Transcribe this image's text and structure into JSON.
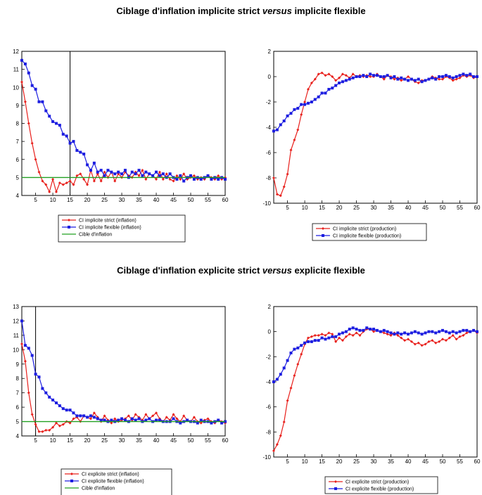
{
  "sections": [
    {
      "title_pre": "Ciblage d'inflation implicite strict ",
      "title_em": "versus",
      "title_post": " implicite flexible"
    },
    {
      "title_pre": "Ciblage d'inflation explicite strict ",
      "title_em": "versus",
      "title_post": " explicite flexible"
    }
  ],
  "colors": {
    "red": "#e8201c",
    "blue": "#1d1ee0",
    "green": "#22a022"
  },
  "chart_data": [
    {
      "type": "line",
      "title": "",
      "xlabel": "",
      "ylabel": "",
      "xlim": [
        1,
        60
      ],
      "ylim": [
        4,
        12
      ],
      "xticks": [
        5,
        10,
        15,
        20,
        25,
        30,
        35,
        40,
        45,
        50,
        55,
        60
      ],
      "yticks": [
        4,
        5,
        6,
        7,
        8,
        9,
        10,
        11,
        12
      ],
      "vline": 15,
      "legend_position": "below",
      "series": [
        {
          "name": "CI implicite strict (inflation)",
          "color": "red",
          "marker": "diamond",
          "values": [
            10.3,
            9.2,
            8.0,
            6.9,
            6.0,
            5.3,
            4.8,
            4.6,
            4.2,
            4.9,
            4.2,
            4.7,
            4.6,
            4.7,
            4.8,
            4.6,
            5.1,
            5.2,
            4.9,
            4.6,
            5.4,
            4.8,
            5.2,
            4.8,
            5.3,
            5.0,
            5.3,
            4.8,
            5.2,
            5.0,
            5.3,
            5.1,
            5.0,
            5.3,
            5.1,
            5.4,
            4.9,
            5.2,
            5.1,
            4.9,
            5.3,
            4.9,
            5.2,
            4.9,
            4.8,
            5.1,
            4.9,
            5.2,
            4.9,
            5.0,
            5.1,
            4.9,
            5.0,
            4.9,
            5.1,
            5.0,
            4.9,
            5.1,
            4.9,
            5.0
          ]
        },
        {
          "name": "CI implicite flexible (inflation)",
          "color": "blue",
          "marker": "square",
          "values": [
            11.5,
            11.3,
            10.8,
            10.1,
            9.9,
            9.2,
            9.2,
            8.7,
            8.4,
            8.1,
            8.0,
            7.9,
            7.4,
            7.3,
            6.9,
            7.0,
            6.5,
            6.4,
            6.3,
            5.7,
            5.4,
            5.8,
            5.3,
            5.4,
            5.1,
            5.4,
            5.3,
            5.2,
            5.3,
            5.2,
            5.4,
            5.0,
            5.3,
            5.2,
            5.4,
            5.1,
            5.3,
            5.2,
            5.1,
            5.3,
            5.1,
            5.2,
            5.0,
            5.2,
            5.0,
            4.9,
            5.1,
            4.8,
            5.0,
            5.1,
            4.9,
            5.0,
            4.9,
            5.0,
            5.1,
            4.9,
            5.0,
            4.9,
            5.0,
            4.9
          ]
        },
        {
          "name": "Cible d'inflation",
          "color": "green",
          "marker": "none",
          "values": [
            5,
            5
          ]
        }
      ]
    },
    {
      "type": "line",
      "title": "",
      "xlabel": "",
      "ylabel": "",
      "xlim": [
        1,
        60
      ],
      "ylim": [
        -10,
        2
      ],
      "xticks": [
        5,
        10,
        15,
        20,
        25,
        30,
        35,
        40,
        45,
        50,
        55,
        60
      ],
      "yticks": [
        -10,
        -8,
        -6,
        -4,
        -2,
        0,
        2
      ],
      "legend_position": "below",
      "series": [
        {
          "name": "CI implicite strict (production)",
          "color": "red",
          "marker": "diamond",
          "values": [
            -8.0,
            -9.3,
            -9.4,
            -8.7,
            -7.7,
            -5.8,
            -5.0,
            -4.2,
            -3.0,
            -2.0,
            -1.0,
            -0.5,
            -0.2,
            0.2,
            0.3,
            0.1,
            0.2,
            0.0,
            -0.3,
            -0.1,
            0.2,
            0.1,
            -0.1,
            0.2,
            0.0,
            0.1,
            0.0,
            0.1,
            0.0,
            0.0,
            0.2,
            0.0,
            -0.2,
            0.1,
            0.0,
            -0.2,
            -0.1,
            -0.3,
            -0.2,
            0.0,
            -0.2,
            -0.4,
            -0.5,
            -0.3,
            -0.3,
            -0.2,
            0.0,
            -0.1,
            -0.2,
            -0.2,
            0.0,
            -0.1,
            -0.3,
            -0.2,
            -0.1,
            0.1,
            0.0,
            0.1,
            -0.1,
            0.0
          ]
        },
        {
          "name": "CI implicite flexible (production)",
          "color": "blue",
          "marker": "square",
          "values": [
            -4.3,
            -4.2,
            -3.8,
            -3.5,
            -3.1,
            -2.9,
            -2.6,
            -2.5,
            -2.2,
            -2.2,
            -2.1,
            -2.0,
            -1.8,
            -1.6,
            -1.3,
            -1.3,
            -1.0,
            -0.9,
            -0.7,
            -0.5,
            -0.4,
            -0.3,
            -0.2,
            -0.1,
            0.0,
            0.0,
            0.1,
            0.0,
            0.2,
            0.1,
            0.1,
            0.0,
            0.0,
            0.1,
            -0.1,
            0.0,
            -0.2,
            -0.1,
            -0.2,
            -0.3,
            -0.2,
            -0.3,
            -0.2,
            -0.4,
            -0.3,
            -0.2,
            -0.1,
            -0.2,
            0.0,
            0.0,
            0.1,
            0.0,
            -0.1,
            0.0,
            0.1,
            0.2,
            0.1,
            0.2,
            0.0,
            0.0
          ]
        }
      ]
    },
    {
      "type": "line",
      "title": "",
      "xlabel": "",
      "ylabel": "",
      "xlim": [
        1,
        60
      ],
      "ylim": [
        4,
        13
      ],
      "xticks": [
        5,
        10,
        15,
        20,
        25,
        30,
        35,
        40,
        45,
        50,
        55,
        60
      ],
      "yticks": [
        4,
        5,
        6,
        7,
        8,
        9,
        10,
        11,
        12,
        13
      ],
      "vline": 5,
      "legend_position": "below",
      "series": [
        {
          "name": "CI explicite strict (inflation)",
          "color": "red",
          "marker": "diamond",
          "values": [
            10.4,
            9.2,
            7.0,
            5.5,
            4.8,
            4.3,
            4.3,
            4.4,
            4.4,
            4.6,
            4.9,
            4.7,
            4.8,
            5.0,
            4.9,
            5.2,
            5.3,
            5.0,
            5.4,
            5.3,
            5.2,
            5.6,
            5.3,
            5.0,
            5.4,
            5.1,
            4.9,
            5.2,
            5.0,
            5.1,
            5.2,
            5.4,
            5.1,
            5.5,
            5.3,
            5.1,
            5.5,
            5.2,
            5.4,
            5.6,
            5.2,
            5.0,
            5.3,
            5.1,
            5.5,
            5.2,
            5.0,
            5.4,
            5.1,
            5.0,
            5.3,
            5.0,
            4.9,
            5.1,
            5.2,
            5.0,
            4.9,
            5.1,
            5.0,
            4.9
          ]
        },
        {
          "name": "CI explicite flexible (inflation)",
          "color": "blue",
          "marker": "square",
          "values": [
            12.0,
            10.3,
            10.1,
            9.6,
            8.3,
            8.1,
            7.3,
            7.0,
            6.7,
            6.5,
            6.3,
            6.1,
            5.9,
            5.8,
            5.8,
            5.6,
            5.4,
            5.4,
            5.4,
            5.3,
            5.4,
            5.3,
            5.2,
            5.1,
            5.1,
            5.0,
            5.1,
            5.0,
            5.1,
            5.2,
            5.1,
            5.0,
            5.2,
            5.1,
            5.2,
            5.0,
            5.1,
            5.2,
            5.0,
            5.1,
            5.1,
            5.0,
            5.0,
            5.0,
            5.2,
            5.0,
            4.9,
            5.0,
            5.1,
            5.0,
            5.0,
            4.9,
            5.1,
            5.0,
            5.0,
            4.9,
            5.0,
            5.1,
            4.9,
            5.0
          ]
        },
        {
          "name": "Cible d'inflation",
          "color": "green",
          "marker": "none",
          "values": [
            5,
            5
          ]
        }
      ]
    },
    {
      "type": "line",
      "title": "",
      "xlabel": "",
      "ylabel": "",
      "xlim": [
        1,
        60
      ],
      "ylim": [
        -10,
        2
      ],
      "xticks": [
        5,
        10,
        15,
        20,
        25,
        30,
        35,
        40,
        45,
        50,
        55,
        60
      ],
      "yticks": [
        -10,
        -8,
        -6,
        -4,
        -2,
        0,
        2
      ],
      "legend_position": "below",
      "series": [
        {
          "name": "CI explicite strict (production)",
          "color": "red",
          "marker": "diamond",
          "values": [
            -9.5,
            -9.0,
            -8.3,
            -7.2,
            -5.5,
            -4.5,
            -3.5,
            -2.6,
            -1.8,
            -1.0,
            -0.5,
            -0.4,
            -0.3,
            -0.3,
            -0.2,
            -0.3,
            -0.1,
            -0.2,
            -0.8,
            -0.5,
            -0.7,
            -0.4,
            -0.2,
            -0.3,
            -0.1,
            -0.3,
            0.0,
            0.2,
            0.2,
            0.0,
            0.1,
            0.0,
            -0.1,
            -0.2,
            -0.3,
            -0.1,
            -0.3,
            -0.5,
            -0.7,
            -0.6,
            -0.8,
            -1.0,
            -0.9,
            -1.1,
            -1.0,
            -0.8,
            -0.7,
            -0.9,
            -0.8,
            -0.6,
            -0.7,
            -0.5,
            -0.3,
            -0.6,
            -0.4,
            -0.3,
            -0.1,
            0.0,
            0.1,
            -0.1
          ]
        },
        {
          "name": "CI explicite flexible (production)",
          "color": "blue",
          "marker": "square",
          "values": [
            -4.0,
            -3.8,
            -3.4,
            -2.9,
            -2.3,
            -1.7,
            -1.4,
            -1.3,
            -1.1,
            -0.9,
            -0.8,
            -0.8,
            -0.7,
            -0.7,
            -0.5,
            -0.6,
            -0.5,
            -0.4,
            -0.4,
            -0.2,
            -0.1,
            0.0,
            0.2,
            0.3,
            0.2,
            0.1,
            0.1,
            0.3,
            0.2,
            0.2,
            0.1,
            0.0,
            0.1,
            0.0,
            -0.1,
            -0.2,
            -0.1,
            -0.2,
            -0.1,
            -0.2,
            -0.1,
            0.0,
            -0.1,
            -0.2,
            -0.1,
            0.0,
            0.0,
            -0.1,
            0.0,
            0.1,
            0.0,
            -0.1,
            0.0,
            -0.1,
            0.0,
            0.1,
            0.1,
            0.0,
            0.1,
            0.0
          ]
        }
      ]
    }
  ]
}
